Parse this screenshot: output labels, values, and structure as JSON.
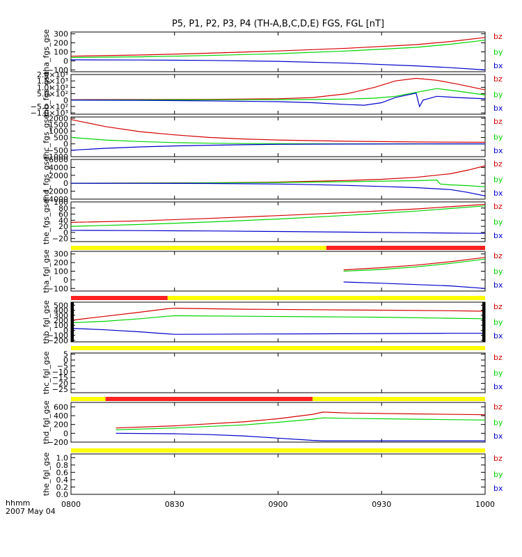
{
  "header": {
    "title": "P5, P1, P2, P3, P4 (TH-A,B,C,D,E) FGS, FGL [nT]"
  },
  "footer": {
    "time_unit": "hhmm",
    "date": "2007 May 04"
  },
  "colors": {
    "bz": "#d40000",
    "by": "#00d400",
    "bx": "#0000cc",
    "yellow": "#ffff00",
    "red": "#ff2020"
  },
  "chart_data": {
    "type": "line",
    "x_unit": "minutes since 0800 UT",
    "xlim": [
      0,
      120
    ],
    "xticks": [
      {
        "value": 0,
        "label": "0800"
      },
      {
        "value": 30,
        "label": "0830"
      },
      {
        "value": 60,
        "label": "0900"
      },
      {
        "value": 90,
        "label": "0930"
      },
      {
        "value": 120,
        "label": "1000"
      }
    ],
    "legend": [
      "bz",
      "by",
      "bx"
    ],
    "panels": [
      {
        "ylabel": "tha_fgs_gse",
        "ylim": [
          -120,
          320
        ],
        "yticks": [
          {
            "value": 300,
            "label": "300"
          },
          {
            "value": 200,
            "label": "200"
          },
          {
            "value": 100,
            "label": "100"
          },
          {
            "value": 0,
            "label": "0"
          },
          {
            "value": -100,
            "label": "−100"
          }
        ],
        "series": [
          {
            "name": "bz",
            "x": [
              0,
              20,
              40,
              60,
              80,
              100,
              110,
              120
            ],
            "y": [
              52,
              65,
              85,
              110,
              140,
              180,
              215,
              260
            ]
          },
          {
            "name": "by",
            "x": [
              0,
              20,
              40,
              60,
              80,
              100,
              110,
              120
            ],
            "y": [
              38,
              45,
              60,
              80,
              110,
              150,
              185,
              230
            ]
          },
          {
            "name": "bx",
            "x": [
              0,
              20,
              40,
              60,
              80,
              100,
              110,
              120
            ],
            "y": [
              12,
              10,
              5,
              -5,
              -25,
              -55,
              -75,
              -100
            ]
          }
        ]
      },
      {
        "ylabel": "thb_fgs_gse",
        "ylim": [
          -1100,
          2000
        ],
        "yticks": [
          {
            "value": 2000,
            "label": "2.0×10³"
          },
          {
            "value": 1500,
            "label": "1.5×10³"
          },
          {
            "value": 1000,
            "label": "1.0×10³"
          },
          {
            "value": 500,
            "label": "5.0×10²"
          },
          {
            "value": 0,
            "label": "0"
          },
          {
            "value": -500,
            "label": "−5.0×10²"
          },
          {
            "value": -1000,
            "label": "−1.0×10³"
          }
        ],
        "series": [
          {
            "name": "bz",
            "x": [
              0,
              20,
              40,
              60,
              70,
              80,
              88,
              94,
              100,
              106,
              112,
              120
            ],
            "y": [
              30,
              40,
              60,
              110,
              200,
              500,
              1000,
              1500,
              1700,
              1550,
              1250,
              800
            ]
          },
          {
            "name": "by",
            "x": [
              0,
              20,
              40,
              60,
              70,
              80,
              88,
              94,
              100,
              106,
              112,
              120
            ],
            "y": [
              10,
              15,
              25,
              40,
              50,
              80,
              150,
              300,
              600,
              900,
              700,
              400
            ]
          },
          {
            "name": "bx",
            "x": [
              0,
              20,
              40,
              60,
              70,
              80,
              85,
              90,
              94,
              100,
              101,
              102,
              106,
              112,
              120
            ],
            "y": [
              0,
              -20,
              -60,
              -120,
              -200,
              -350,
              -400,
              -200,
              200,
              550,
              -500,
              0,
              300,
              200,
              100
            ]
          }
        ]
      },
      {
        "ylabel": "thc_fgs_gse",
        "ylim": [
          -1000,
          2100
        ],
        "yticks": [
          {
            "value": 2000,
            "label": "2000"
          },
          {
            "value": 1500,
            "label": "1500"
          },
          {
            "value": 1000,
            "label": "1000"
          },
          {
            "value": 500,
            "label": "500"
          },
          {
            "value": 0,
            "label": "0"
          },
          {
            "value": -500,
            "label": "−500"
          },
          {
            "value": -1000,
            "label": "−1000"
          }
        ],
        "series": [
          {
            "name": "bz",
            "x": [
              0,
              10,
              20,
              30,
              40,
              50,
              60,
              80,
              100,
              120
            ],
            "y": [
              1900,
              1350,
              950,
              700,
              500,
              380,
              300,
              200,
              150,
              120
            ]
          },
          {
            "name": "by",
            "x": [
              0,
              10,
              20,
              30,
              40,
              50,
              60,
              80,
              100,
              120
            ],
            "y": [
              500,
              300,
              180,
              100,
              50,
              20,
              10,
              0,
              0,
              0
            ]
          },
          {
            "name": "bx",
            "x": [
              0,
              10,
              20,
              30,
              40,
              50,
              60,
              80,
              100,
              120
            ],
            "y": [
              -500,
              -350,
              -240,
              -160,
              -110,
              -70,
              -40,
              -15,
              -5,
              0
            ]
          }
        ]
      },
      {
        "ylabel": "thd_fgs_gse",
        "ylim": [
          -4000,
          6000
        ],
        "yticks": [
          {
            "value": 6000,
            "label": "6000"
          },
          {
            "value": 4000,
            "label": "4000"
          },
          {
            "value": 2000,
            "label": "2000"
          },
          {
            "value": 0,
            "label": "0"
          },
          {
            "value": -2000,
            "label": "−2000"
          },
          {
            "value": -4000,
            "label": "−4000"
          }
        ],
        "series": [
          {
            "name": "bz",
            "x": [
              0,
              20,
              40,
              60,
              70,
              80,
              90,
              100,
              110,
              115,
              120
            ],
            "y": [
              0,
              50,
              100,
              300,
              500,
              700,
              1000,
              1500,
              2400,
              3300,
              4400
            ]
          },
          {
            "name": "by",
            "x": [
              0,
              20,
              40,
              60,
              80,
              100,
              106,
              107,
              110,
              115,
              120
            ],
            "y": [
              0,
              30,
              80,
              200,
              400,
              650,
              800,
              -200,
              -400,
              -600,
              -900
            ]
          },
          {
            "name": "bx",
            "x": [
              0,
              20,
              40,
              60,
              70,
              80,
              90,
              100,
              110,
              115,
              120
            ],
            "y": [
              0,
              -20,
              -60,
              -200,
              -350,
              -550,
              -800,
              -1100,
              -1600,
              -2300,
              -3200
            ]
          }
        ]
      },
      {
        "ylabel": "the_fgs_gse",
        "ylim": [
          -30,
          100
        ],
        "yticks": [
          {
            "value": 100,
            "label": "100"
          },
          {
            "value": 80,
            "label": "80"
          },
          {
            "value": 60,
            "label": "60"
          },
          {
            "value": 40,
            "label": "40"
          },
          {
            "value": 20,
            "label": "20"
          },
          {
            "value": 0,
            "label": "0"
          },
          {
            "value": -20,
            "label": "−20"
          }
        ],
        "series": [
          {
            "name": "bz",
            "x": [
              0,
              20,
              40,
              60,
              80,
              100,
              120
            ],
            "y": [
              33,
              38,
              46,
              55,
              65,
              77,
              92
            ]
          },
          {
            "name": "by",
            "x": [
              0,
              20,
              40,
              60,
              80,
              100,
              120
            ],
            "y": [
              20,
              26,
              34,
              44,
              56,
              70,
              87
            ]
          },
          {
            "name": "bx",
            "x": [
              0,
              20,
              40,
              60,
              80,
              100,
              120
            ],
            "y": [
              7,
              6,
              5,
              3,
              1,
              -1,
              -3
            ]
          }
        ]
      },
      {
        "ylabel": "tha_fgl_gse",
        "ylim": [
          -130,
          330
        ],
        "yticks": [
          {
            "value": 300,
            "label": "300"
          },
          {
            "value": 200,
            "label": "200"
          },
          {
            "value": 100,
            "label": "100"
          },
          {
            "value": 0,
            "label": "0"
          },
          {
            "value": -100,
            "label": "−100"
          }
        ],
        "series": [
          {
            "name": "bz",
            "x": [
              79,
              90,
              100,
              110,
              120
            ],
            "y": [
              115,
              140,
              170,
              210,
              260
            ]
          },
          {
            "name": "by",
            "x": [
              79,
              90,
              100,
              110,
              120
            ],
            "y": [
              100,
              120,
              150,
              190,
              240
            ]
          },
          {
            "name": "bx",
            "x": [
              79,
              90,
              100,
              110,
              120
            ],
            "y": [
              -25,
              -40,
              -55,
              -70,
              -100
            ]
          }
        ],
        "mode_bar": [
          {
            "from": 0,
            "to": 28,
            "color": "red"
          },
          {
            "from": 28,
            "to": 120,
            "color": "yellow"
          }
        ]
      },
      {
        "ylabel": "thb_fgl_gse",
        "ylim": [
          -230,
          560
        ],
        "yticks": [
          {
            "value": 500,
            "label": "500"
          },
          {
            "value": 400,
            "label": "400"
          },
          {
            "value": 300,
            "label": "300"
          },
          {
            "value": 200,
            "label": "200"
          },
          {
            "value": 100,
            "label": "100"
          },
          {
            "value": 0,
            "label": "0"
          },
          {
            "value": -100,
            "label": "−100"
          },
          {
            "value": -200,
            "label": "−200"
          }
        ],
        "series": [
          {
            "name": "bz",
            "x": [
              0,
              10,
              20,
              28,
              30,
              50,
              70,
              90,
              110,
              120
            ],
            "y": [
              200,
              280,
              360,
              430,
              440,
              420,
              410,
              400,
              390,
              380
            ]
          },
          {
            "name": "by",
            "x": [
              0,
              10,
              20,
              28,
              30,
              50,
              70,
              90,
              110,
              120
            ],
            "y": [
              150,
              180,
              230,
              280,
              290,
              280,
              270,
              260,
              240,
              230
            ]
          },
          {
            "name": "bx",
            "x": [
              0,
              10,
              20,
              28,
              30,
              50,
              70,
              90,
              110,
              120
            ],
            "y": [
              40,
              10,
              -30,
              -70,
              -80,
              -75,
              -70,
              -65,
              -60,
              -60
            ]
          }
        ],
        "mode_bar": [
          {
            "from": 0,
            "to": 120,
            "color": "yellow"
          }
        ]
      },
      {
        "ylabel": "thc_fgl_gse",
        "ylim": [
          -28,
          6
        ],
        "yticks": [
          {
            "value": 5,
            "label": "5"
          },
          {
            "value": 0,
            "label": "0"
          },
          {
            "value": -5,
            "label": "−5"
          },
          {
            "value": -10,
            "label": "−10"
          },
          {
            "value": -15,
            "label": "−15"
          },
          {
            "value": -20,
            "label": "−20"
          },
          {
            "value": -25,
            "label": "−25"
          }
        ],
        "series": [],
        "mode_bar": [
          {
            "from": 0,
            "to": 10,
            "color": "yellow"
          },
          {
            "from": 10,
            "to": 70,
            "color": "red"
          },
          {
            "from": 70,
            "to": 120,
            "color": "yellow"
          }
        ]
      },
      {
        "ylabel": "thd_fgl_gse",
        "ylim": [
          -200,
          700
        ],
        "yticks": [
          {
            "value": 600,
            "label": "600"
          },
          {
            "value": 400,
            "label": "400"
          },
          {
            "value": 200,
            "label": "200"
          },
          {
            "value": 0,
            "label": "0"
          },
          {
            "value": -200,
            "label": "−200"
          }
        ],
        "series": [
          {
            "name": "bz",
            "x": [
              13,
              30,
              50,
              60,
              70,
              73,
              80,
              100,
              120
            ],
            "y": [
              120,
              170,
              260,
              330,
              430,
              480,
              460,
              440,
              420
            ]
          },
          {
            "name": "by",
            "x": [
              13,
              30,
              50,
              60,
              70,
              73,
              80,
              100,
              120
            ],
            "y": [
              80,
              120,
              190,
              250,
              320,
              350,
              340,
              320,
              300
            ]
          },
          {
            "name": "bx",
            "x": [
              13,
              30,
              40,
              50,
              60,
              70,
              73,
              80,
              100,
              120
            ],
            "y": [
              0,
              -10,
              -30,
              -60,
              -110,
              -160,
              -170,
              -170,
              -170,
              -170
            ]
          }
        ],
        "mode_bar": [
          {
            "from": 0,
            "to": 120,
            "color": "yellow"
          }
        ]
      },
      {
        "ylabel": "the_fgl_gse",
        "ylim": [
          0,
          1.1
        ],
        "yticks": [
          {
            "value": 1.0,
            "label": "1.0"
          },
          {
            "value": 0.8,
            "label": "0.8"
          },
          {
            "value": 0.6,
            "label": "0.6"
          },
          {
            "value": 0.4,
            "label": "0.4"
          },
          {
            "value": 0.2,
            "label": "0.2"
          },
          {
            "value": 0.0,
            "label": "0.0"
          }
        ],
        "series": []
      }
    ],
    "status_bar_fgs": [
      {
        "from": 0,
        "to": 74,
        "color": "yellow"
      },
      {
        "from": 74,
        "to": 120,
        "color": "red"
      }
    ]
  }
}
